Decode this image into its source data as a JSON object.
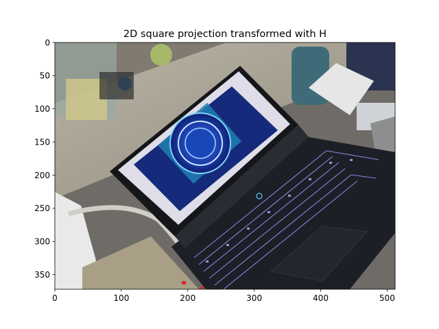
{
  "chart_data": {
    "type": "image",
    "title": "2D square projection transformed with H",
    "xlabel": "",
    "ylabel": "",
    "xlim": [
      0,
      512
    ],
    "ylim": [
      372,
      0
    ],
    "x_ticks": [
      0,
      100,
      200,
      300,
      400,
      500
    ],
    "y_ticks": [
      0,
      50,
      100,
      150,
      200,
      250,
      300,
      350
    ],
    "grid": false,
    "image_description": "Photo of an open laptop on a desk; the screen shows a blue circular 5G graphic and the keyboard has purple backlighting."
  }
}
